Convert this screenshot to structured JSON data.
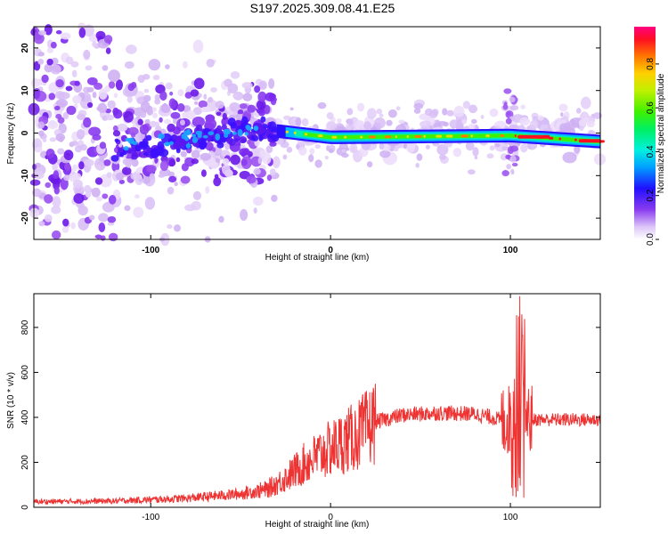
{
  "title": "S197.2025.309.08.41.E25",
  "chart_data": [
    {
      "type": "heatmap",
      "xlabel": "Height of straight line (km)",
      "ylabel": "Frequency (Hz)",
      "xlim": [
        -165,
        150
      ],
      "ylim": [
        -25,
        25
      ],
      "xticks": [
        "-100",
        "0",
        "100"
      ],
      "xtick_values": [
        -100,
        0,
        100
      ],
      "yticks": [
        "-20",
        "-10",
        "0",
        "10",
        "20"
      ],
      "ytick_values": [
        -20,
        -10,
        0,
        10,
        20
      ],
      "colorbar": {
        "label": "Normalized spectral amplitude",
        "range": [
          0.0,
          0.97
        ],
        "ticks": [
          "0.0",
          "0.2",
          "0.4",
          "0.6",
          "0.8"
        ],
        "tick_values": [
          0.0,
          0.2,
          0.4,
          0.6,
          0.8
        ]
      },
      "dominant_line": {
        "description_points_km_hz": [
          [
            -30,
            0.5
          ],
          [
            0,
            -1
          ],
          [
            50,
            -0.8
          ],
          [
            100,
            -0.6
          ],
          [
            150,
            -2
          ]
        ]
      }
    },
    {
      "type": "line",
      "xlabel": "Height of straight line (km)",
      "ylabel": "SNR (10 * v/v)",
      "xlim": [
        -165,
        150
      ],
      "ylim": [
        0,
        950
      ],
      "xticks": [
        "-100",
        "0",
        "100"
      ],
      "xtick_values": [
        -100,
        0,
        100
      ],
      "yticks": [
        "0",
        "200",
        "400",
        "600",
        "800"
      ],
      "ytick_values": [
        0,
        200,
        400,
        600,
        800
      ],
      "color": "#ee3333",
      "trend": {
        "x": [
          -165,
          -120,
          -80,
          -50,
          -35,
          -25,
          -15,
          -5,
          5,
          15,
          25,
          40,
          60,
          80,
          90,
          98,
          103,
          106,
          110,
          120,
          150
        ],
        "y": [
          25,
          28,
          40,
          60,
          80,
          130,
          190,
          240,
          280,
          320,
          380,
          410,
          420,
          415,
          400,
          380,
          420,
          500,
          390,
          390,
          390
        ]
      }
    }
  ]
}
